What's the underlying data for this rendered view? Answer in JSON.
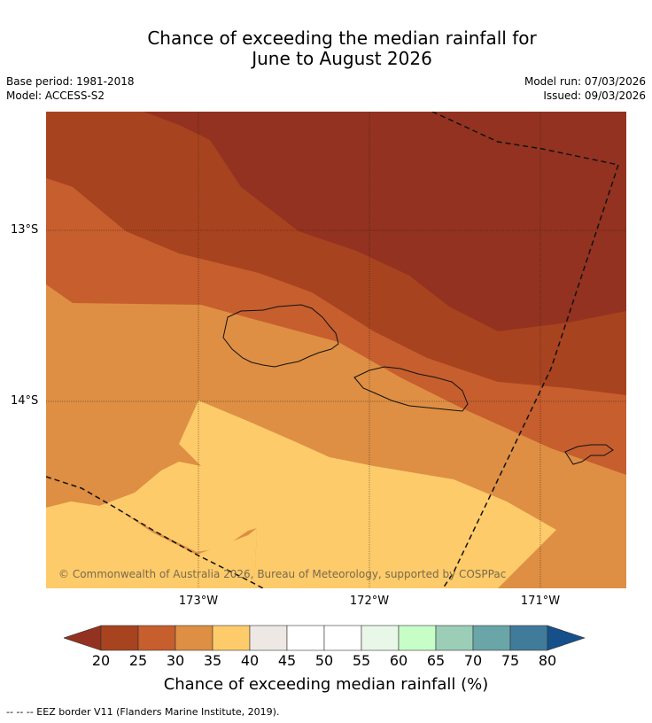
{
  "header": {
    "title_line1": "Chance of exceeding the median rainfall for",
    "title_line2": "June to August 2026",
    "base_period": "Base period: 1981-2018",
    "model": "Model: ACCESS-S2",
    "model_run": "Model run: 07/03/2026",
    "issued": "Issued: 09/03/2026"
  },
  "map": {
    "lat_labels": [
      "13°S",
      "14°S"
    ],
    "lon_labels": [
      "173°W",
      "172°W",
      "171°W"
    ],
    "copyright": "© Commonwealth of Australia 2026, Bureau of Meteorology, supported by COSPPac",
    "category_colors": {
      "20-25": "#a8431f",
      "25-30": "#c65e2e",
      "30-35": "#de8f43",
      "35-40": "#fdcb6a",
      "below-20": "#933220"
    }
  },
  "colorbar": {
    "ticks": [
      "20",
      "25",
      "30",
      "35",
      "40",
      "45",
      "50",
      "55",
      "60",
      "65",
      "70",
      "75",
      "80"
    ],
    "colors": [
      "#a8431f",
      "#c65e2e",
      "#de8f43",
      "#fdcb6a",
      "#ede8e3",
      "#ffffff",
      "#ffffff",
      "#e8f7e8",
      "#c7fdc7",
      "#9bcdb7",
      "#6aa5a8",
      "#407b9a"
    ],
    "low_extend_color": "#933220",
    "high_extend_color": "#16508a",
    "label": "Chance of exceeding median rainfall (%)"
  },
  "footer": {
    "legend_text": "--  --  -- EEZ border V11 (Flanders Marine Institute, 2019)."
  }
}
